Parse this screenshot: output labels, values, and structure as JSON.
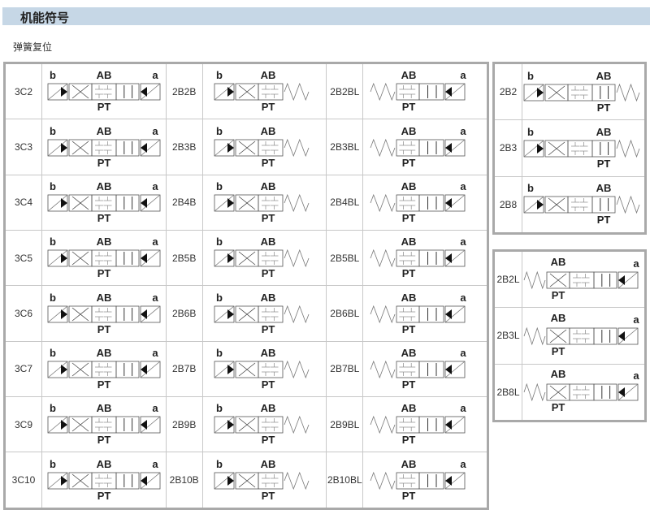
{
  "header": {
    "title": "机能符号"
  },
  "subtitle": "弹簧复位",
  "main_table": [
    [
      {
        "code": "3C2",
        "symbol": "3pos"
      },
      {
        "code": "2B2B",
        "symbol": "2b"
      },
      {
        "code": "2B2BL",
        "symbol": "2bl"
      }
    ],
    [
      {
        "code": "3C3",
        "symbol": "3pos"
      },
      {
        "code": "2B3B",
        "symbol": "2b"
      },
      {
        "code": "2B3BL",
        "symbol": "2bl"
      }
    ],
    [
      {
        "code": "3C4",
        "symbol": "3pos"
      },
      {
        "code": "2B4B",
        "symbol": "2b"
      },
      {
        "code": "2B4BL",
        "symbol": "2bl"
      }
    ],
    [
      {
        "code": "3C5",
        "symbol": "3pos"
      },
      {
        "code": "2B5B",
        "symbol": "2b"
      },
      {
        "code": "2B5BL",
        "symbol": "2bl"
      }
    ],
    [
      {
        "code": "3C6",
        "symbol": "3pos"
      },
      {
        "code": "2B6B",
        "symbol": "2b"
      },
      {
        "code": "2B6BL",
        "symbol": "2bl"
      }
    ],
    [
      {
        "code": "3C7",
        "symbol": "3pos"
      },
      {
        "code": "2B7B",
        "symbol": "2b"
      },
      {
        "code": "2B7BL",
        "symbol": "2bl"
      }
    ],
    [
      {
        "code": "3C9",
        "symbol": "3pos"
      },
      {
        "code": "2B9B",
        "symbol": "2b"
      },
      {
        "code": "2B9BL",
        "symbol": "2bl"
      }
    ],
    [
      {
        "code": "3C10",
        "symbol": "3pos"
      },
      {
        "code": "2B10B",
        "symbol": "2b"
      },
      {
        "code": "2B10BL",
        "symbol": "2bl"
      }
    ]
  ],
  "side_table_1": [
    {
      "code": "2B2",
      "symbol": "2b3"
    },
    {
      "code": "2B3",
      "symbol": "2b3"
    },
    {
      "code": "2B8",
      "symbol": "2b3"
    }
  ],
  "side_table_2": [
    {
      "code": "2B2L",
      "symbol": "2l3"
    },
    {
      "code": "2B3L",
      "symbol": "2l3"
    },
    {
      "code": "2B8L",
      "symbol": "2l3"
    }
  ],
  "port_labels": {
    "b": "b",
    "a": "a",
    "ab": "AB",
    "pt": "PT"
  },
  "colors": {
    "header_bg": "#c6d7e6",
    "border": "#a9a9a9"
  }
}
